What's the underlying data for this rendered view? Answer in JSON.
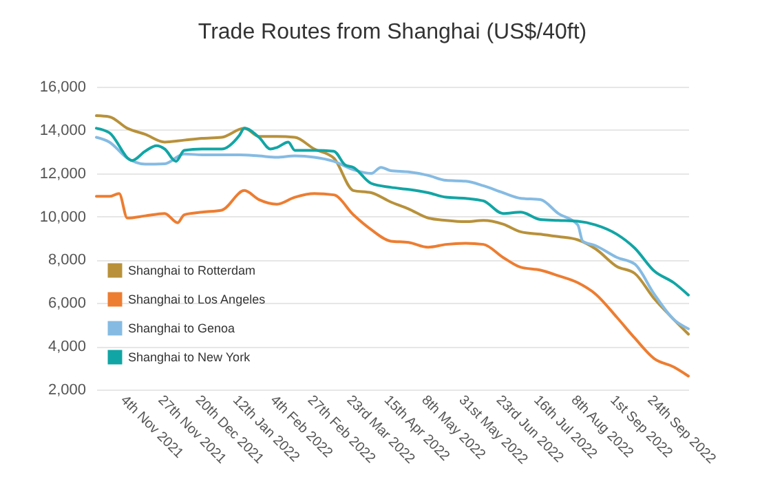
{
  "chart_data": {
    "type": "line",
    "title": "Trade Routes from Shanghai (US$/40ft)",
    "xlim": [
      "2021-10-16",
      "2022-10-15"
    ],
    "xticks": [
      {
        "value": "2021-11-04",
        "label": "4th Nov 2021"
      },
      {
        "value": "2021-11-27",
        "label": "27th Nov 2021"
      },
      {
        "value": "2021-12-20",
        "label": "20th Dec 2021"
      },
      {
        "value": "2022-01-12",
        "label": "12th Jan 2022"
      },
      {
        "value": "2022-02-04",
        "label": "4th Feb 2022"
      },
      {
        "value": "2022-02-27",
        "label": "27th Feb 2022"
      },
      {
        "value": "2022-03-23",
        "label": "23rd Mar 2022"
      },
      {
        "value": "2022-04-15",
        "label": "15th Apr 2022"
      },
      {
        "value": "2022-05-08",
        "label": "8th May 2022"
      },
      {
        "value": "2022-05-31",
        "label": "31st May 2022"
      },
      {
        "value": "2022-06-23",
        "label": "23rd Jun 2022"
      },
      {
        "value": "2022-07-16",
        "label": "16th Jul 2022"
      },
      {
        "value": "2022-08-08",
        "label": "8th Aug 2022"
      },
      {
        "value": "2022-09-01",
        "label": "1st Sep 2022"
      },
      {
        "value": "2022-09-24",
        "label": "24th Sep 2022"
      }
    ],
    "ylim": [
      2000,
      16000
    ],
    "yticks": [
      {
        "value": 2000,
        "label": "2,000"
      },
      {
        "value": 4000,
        "label": "4,000"
      },
      {
        "value": 6000,
        "label": "6,000"
      },
      {
        "value": 8000,
        "label": "8,000"
      },
      {
        "value": 10000,
        "label": "10,000"
      },
      {
        "value": 12000,
        "label": "12,000"
      },
      {
        "value": 14000,
        "label": "14,000"
      },
      {
        "value": 16000,
        "label": "16,000"
      }
    ],
    "grid": "y",
    "legend": "bottom left",
    "marker": "none",
    "line_style": "solid",
    "series": [
      {
        "name": "Shanghai to Rotterdam",
        "color": "#b8913a",
        "x": [
          "2021-10-16",
          "2021-10-24",
          "2021-11-04",
          "2021-11-15",
          "2021-11-27",
          "2021-12-09",
          "2021-12-20",
          "2022-01-01",
          "2022-01-15",
          "2022-01-24",
          "2022-02-04",
          "2022-02-15",
          "2022-02-27",
          "2022-03-11",
          "2022-03-23",
          "2022-04-03",
          "2022-04-15",
          "2022-04-26",
          "2022-05-08",
          "2022-05-19",
          "2022-05-31",
          "2022-06-11",
          "2022-06-23",
          "2022-07-04",
          "2022-07-16",
          "2022-07-27",
          "2022-08-08",
          "2022-08-19",
          "2022-09-01",
          "2022-09-12",
          "2022-09-24",
          "2022-10-06",
          "2022-10-15"
        ],
        "values": [
          14660,
          14610,
          14080,
          13800,
          13440,
          13530,
          13610,
          13660,
          14080,
          13700,
          13700,
          13660,
          13120,
          12700,
          11200,
          11100,
          10670,
          10350,
          9930,
          9820,
          9760,
          9820,
          9650,
          9290,
          9180,
          9070,
          8920,
          8500,
          7690,
          7370,
          6200,
          5240,
          4560
        ]
      },
      {
        "name": "Shanghai to Los Angeles",
        "color": "#ed7d31",
        "x": [
          "2021-10-16",
          "2021-10-24",
          "2021-10-30",
          "2021-11-04",
          "2021-11-15",
          "2021-11-27",
          "2021-12-05",
          "2021-12-09",
          "2021-12-20",
          "2022-01-01",
          "2022-01-15",
          "2022-01-24",
          "2022-02-04",
          "2022-02-15",
          "2022-02-27",
          "2022-03-11",
          "2022-03-23",
          "2022-04-03",
          "2022-04-15",
          "2022-04-26",
          "2022-05-08",
          "2022-05-19",
          "2022-05-31",
          "2022-06-11",
          "2022-06-23",
          "2022-07-04",
          "2022-07-16",
          "2022-07-27",
          "2022-08-08",
          "2022-08-19",
          "2022-09-01",
          "2022-09-12",
          "2022-09-24",
          "2022-10-06",
          "2022-10-15"
        ],
        "values": [
          10930,
          10930,
          11060,
          9930,
          10030,
          10140,
          9710,
          10080,
          10200,
          10290,
          11200,
          10780,
          10570,
          10890,
          11060,
          11000,
          10080,
          9390,
          8860,
          8800,
          8580,
          8710,
          8760,
          8710,
          8110,
          7650,
          7520,
          7260,
          6940,
          6410,
          5340,
          4380,
          3430,
          3040,
          2620
        ]
      },
      {
        "name": "Shanghai to Genoa",
        "color": "#85bbe3",
        "x": [
          "2021-10-16",
          "2021-10-24",
          "2021-11-04",
          "2021-11-15",
          "2021-11-27",
          "2021-12-09",
          "2021-12-20",
          "2022-01-01",
          "2022-01-12",
          "2022-01-24",
          "2022-02-04",
          "2022-02-15",
          "2022-02-27",
          "2022-03-11",
          "2022-03-23",
          "2022-04-03",
          "2022-04-09",
          "2022-04-15",
          "2022-04-26",
          "2022-05-08",
          "2022-05-19",
          "2022-05-31",
          "2022-06-11",
          "2022-06-23",
          "2022-07-04",
          "2022-07-16",
          "2022-07-27",
          "2022-08-08",
          "2022-08-11",
          "2022-08-19",
          "2022-09-01",
          "2022-09-12",
          "2022-09-24",
          "2022-10-06",
          "2022-10-15"
        ],
        "values": [
          13660,
          13440,
          12700,
          12420,
          12440,
          12890,
          12850,
          12850,
          12850,
          12800,
          12740,
          12800,
          12740,
          12550,
          12160,
          11990,
          12270,
          12120,
          12060,
          11900,
          11670,
          11630,
          11420,
          11100,
          10840,
          10780,
          10140,
          9610,
          8860,
          8650,
          8110,
          7800,
          6410,
          5240,
          4810
        ]
      },
      {
        "name": "Shanghai to New York",
        "color": "#12a5a5",
        "x": [
          "2021-10-16",
          "2021-10-24",
          "2021-11-07",
          "2021-11-15",
          "2021-11-22",
          "2021-11-27",
          "2021-12-04",
          "2021-12-09",
          "2021-12-20",
          "2022-01-01",
          "2022-01-12",
          "2022-01-15",
          "2022-01-24",
          "2022-01-31",
          "2022-02-04",
          "2022-02-11",
          "2022-02-15",
          "2022-02-27",
          "2022-03-11",
          "2022-03-18",
          "2022-03-23",
          "2022-04-03",
          "2022-04-15",
          "2022-04-26",
          "2022-05-08",
          "2022-05-19",
          "2022-05-31",
          "2022-06-11",
          "2022-06-23",
          "2022-07-04",
          "2022-07-16",
          "2022-07-27",
          "2022-08-08",
          "2022-08-19",
          "2022-09-01",
          "2022-09-12",
          "2022-09-24",
          "2022-10-06",
          "2022-10-15"
        ],
        "values": [
          14080,
          13870,
          12590,
          13020,
          13270,
          13120,
          12550,
          13060,
          13120,
          13120,
          13760,
          14080,
          13660,
          13120,
          13190,
          13440,
          13060,
          13060,
          13020,
          12380,
          12270,
          11530,
          11350,
          11250,
          11100,
          10890,
          10840,
          10720,
          10140,
          10200,
          9860,
          9820,
          9780,
          9610,
          9180,
          8540,
          7480,
          6940,
          6370
        ]
      }
    ]
  }
}
